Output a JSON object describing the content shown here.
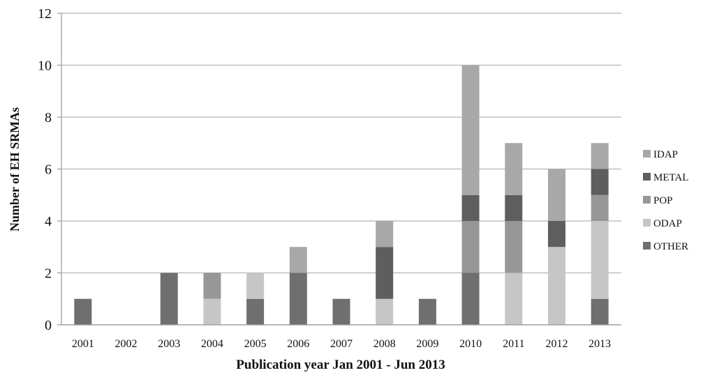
{
  "chart_data": {
    "type": "bar",
    "stacked": true,
    "title": "",
    "xlabel": "Publication year Jan 2001 - Jun 2013",
    "ylabel": "Number of EH SRMAs",
    "ylim": [
      0,
      12
    ],
    "yticks": [
      0,
      2,
      4,
      6,
      8,
      10,
      12
    ],
    "grid": true,
    "legend_position": "right",
    "categories": [
      "2001",
      "2002",
      "2003",
      "2004",
      "2005",
      "2006",
      "2007",
      "2008",
      "2009",
      "2010",
      "2011",
      "2012",
      "2013"
    ],
    "series": [
      {
        "name": "OTHER",
        "color": "#6f6f6f",
        "values": [
          1,
          0,
          2,
          0,
          1,
          2,
          1,
          0,
          1,
          2,
          0,
          0,
          1
        ]
      },
      {
        "name": "ODAP",
        "color": "#c6c6c6",
        "values": [
          0,
          0,
          0,
          1,
          1,
          0,
          0,
          1,
          0,
          0,
          2,
          3,
          3
        ]
      },
      {
        "name": "POP",
        "color": "#979797",
        "values": [
          0,
          0,
          0,
          1,
          0,
          0,
          0,
          0,
          0,
          2,
          2,
          0,
          1
        ]
      },
      {
        "name": "METAL",
        "color": "#5e5e5e",
        "values": [
          0,
          0,
          0,
          0,
          0,
          0,
          0,
          2,
          0,
          1,
          1,
          1,
          1
        ]
      },
      {
        "name": "IDAP",
        "color": "#a8a8a8",
        "values": [
          0,
          0,
          0,
          0,
          0,
          1,
          0,
          1,
          0,
          5,
          2,
          2,
          1
        ]
      }
    ],
    "legend_order": [
      "IDAP",
      "METAL",
      "POP",
      "ODAP",
      "OTHER"
    ]
  }
}
